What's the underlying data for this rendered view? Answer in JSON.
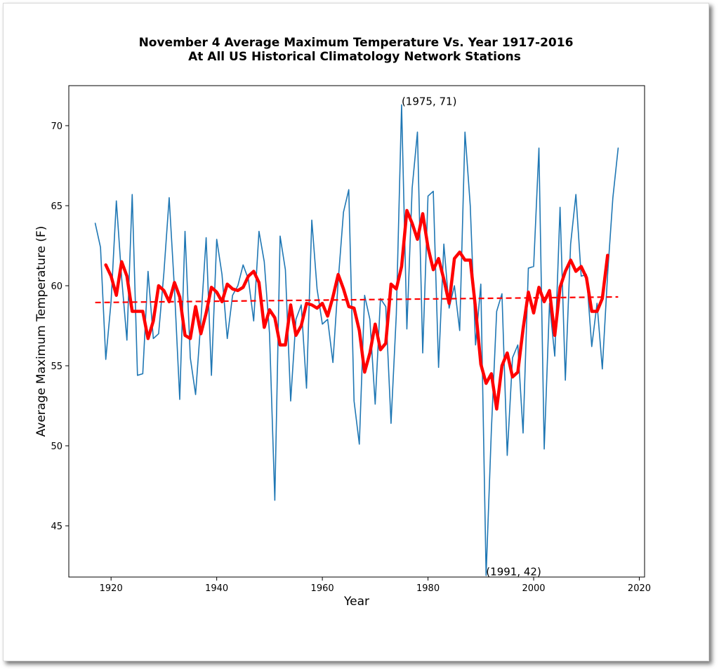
{
  "chart_data": {
    "type": "line",
    "title": "November 4 Average Maximum Temperature Vs. Year 1917-2016",
    "subtitle": "At All US Historical Climatology Network Stations",
    "xlabel": "Year",
    "ylabel": "Average Maximum Temperature (F)",
    "xlim": [
      1912,
      2021
    ],
    "ylim": [
      41.8,
      72.5
    ],
    "xticks": [
      1920,
      1940,
      1960,
      1980,
      2000,
      2020
    ],
    "yticks": [
      45,
      50,
      55,
      60,
      65,
      70
    ],
    "grid": false,
    "colors": {
      "raw": "#1f77b4",
      "smooth": "#ff0000",
      "trend": "#ff0000"
    },
    "series": [
      {
        "style": "thin-line",
        "x_start": 1917,
        "values": [
          63.9,
          62.4,
          55.4,
          59.0,
          65.3,
          60.5,
          56.6,
          65.7,
          54.4,
          54.5,
          60.9,
          56.7,
          57.0,
          60.8,
          65.5,
          59.8,
          52.9,
          63.4,
          55.5,
          53.2,
          57.8,
          63.0,
          54.4,
          62.9,
          60.7,
          56.7,
          59.4,
          60.0,
          61.3,
          60.4,
          57.8,
          63.4,
          61.5,
          57.0,
          46.6,
          63.1,
          61.0,
          52.8,
          57.9,
          58.8,
          53.6,
          64.1,
          59.8,
          57.6,
          57.9,
          55.2,
          60.3,
          64.6,
          66.0,
          52.8,
          50.1,
          59.4,
          57.9,
          52.6,
          59.2,
          58.7,
          51.4,
          58.2,
          71.3,
          57.3,
          66.1,
          69.6,
          55.8,
          65.6,
          65.9,
          54.9,
          62.6,
          58.6,
          60.0,
          57.2,
          69.6,
          65.0,
          56.3,
          60.1,
          41.9,
          51.0,
          58.4,
          59.5,
          49.4,
          55.5,
          56.3,
          50.8,
          61.1,
          61.2,
          68.6,
          49.8,
          58.9,
          55.6,
          64.9,
          54.1,
          62.6,
          65.7,
          60.6,
          60.7,
          56.2,
          58.9,
          54.8,
          60.7,
          65.5,
          68.6
        ]
      },
      {
        "style": "thick-smoothed",
        "x_start": 1919,
        "values": [
          61.3,
          60.6,
          59.4,
          61.5,
          60.6,
          58.4,
          58.4,
          58.4,
          56.7,
          57.8,
          60.0,
          59.7,
          59.0,
          60.2,
          59.3,
          56.9,
          56.7,
          58.7,
          57.0,
          58.3,
          59.9,
          59.6,
          59.0,
          60.1,
          59.8,
          59.7,
          59.9,
          60.6,
          60.9,
          60.2,
          57.4,
          58.5,
          58.0,
          56.3,
          56.3,
          58.8,
          56.9,
          57.5,
          58.9,
          58.8,
          58.6,
          58.9,
          58.1,
          59.3,
          60.7,
          59.8,
          58.7,
          58.6,
          57.2,
          54.6,
          55.8,
          57.6,
          56.0,
          56.4,
          60.1,
          59.8,
          61.2,
          64.7,
          63.9,
          62.9,
          64.5,
          62.4,
          61.0,
          61.7,
          60.4,
          58.9,
          61.7,
          62.1,
          61.6,
          61.6,
          58.6,
          55.1,
          53.9,
          54.5,
          52.3,
          55.0,
          55.8,
          54.3,
          54.6,
          57.3,
          59.6,
          58.3,
          59.9,
          59.0,
          59.7,
          56.9,
          59.9,
          60.9,
          61.6,
          60.9,
          61.2,
          60.5,
          58.4,
          58.4,
          59.2,
          61.9
        ]
      },
      {
        "style": "dashed-trend",
        "x": [
          1917,
          2016
        ],
        "values": [
          58.95,
          59.3
        ]
      }
    ],
    "annotations": [
      {
        "text": "(1975, 71)",
        "x": 1975,
        "y": 71.3
      },
      {
        "text": "(1991, 42)",
        "x": 1991,
        "y": 41.9
      }
    ]
  }
}
